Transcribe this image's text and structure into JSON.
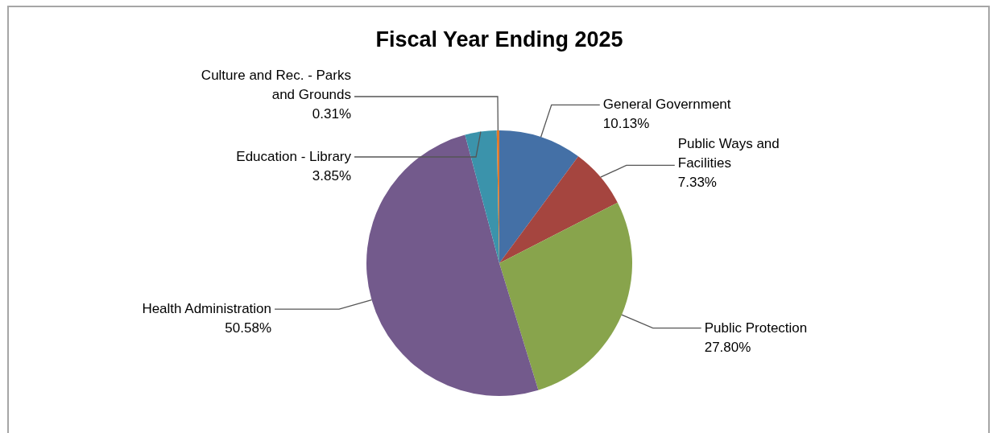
{
  "chart_data": {
    "type": "pie",
    "title": "Fiscal Year Ending 2025",
    "categories": [
      "General Government",
      "Public Ways and Facilities",
      "Public Protection",
      "Health Administration",
      "Education - Library",
      "Culture and Rec. - Parks and Grounds"
    ],
    "values": [
      10.13,
      7.33,
      27.8,
      50.58,
      3.85,
      0.31
    ],
    "value_labels": [
      "10.13%",
      "7.33%",
      "27.80%",
      "50.58%",
      "3.85%",
      "0.31%"
    ],
    "colors": [
      "#4470a6",
      "#a5453f",
      "#88a44c",
      "#735a8c",
      "#3b93ab",
      "#e07a2a"
    ]
  }
}
